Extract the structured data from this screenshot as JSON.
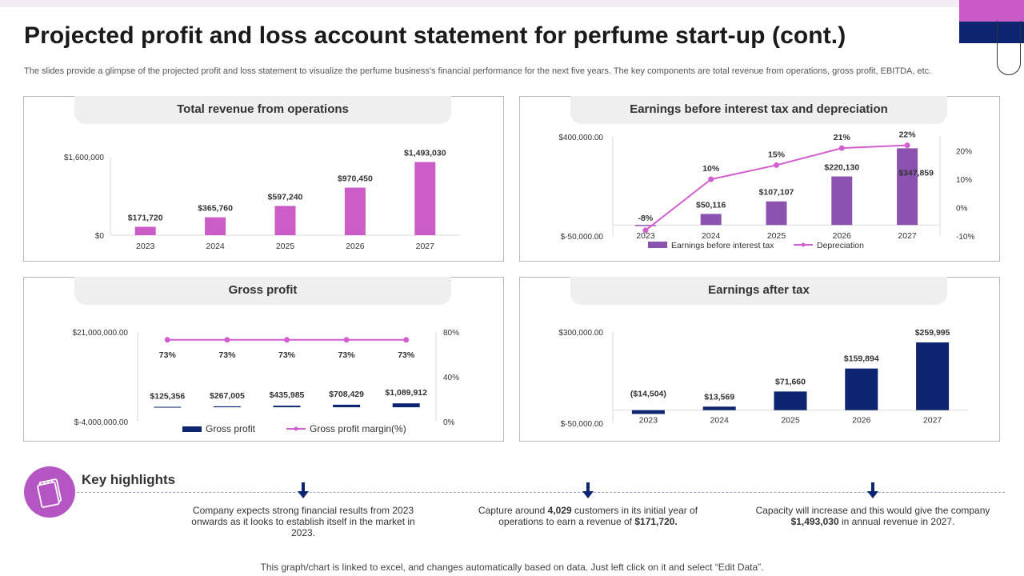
{
  "title": "Projected profit and loss account statement for perfume start-up (cont.)",
  "subtitle": "The slides provide a glimpse of the projected profit and loss statement to visualize the perfume business's financial performance for the next five years. The key components are total revenue from operations, gross profit, EBITDA,  etc.",
  "colors": {
    "pink": "#cc5cc8",
    "navy": "#0d2470",
    "purple": "#8c52b0",
    "line_pink": "#d25ed0"
  },
  "chart_data": [
    {
      "type": "bar",
      "title": "Total revenue from operations",
      "categories": [
        "2023",
        "2024",
        "2025",
        "2026",
        "2027"
      ],
      "values": [
        171720,
        365760,
        597240,
        970450,
        1493030
      ],
      "data_labels": [
        "$171,720",
        "$365,760",
        "$597,240",
        "$970,450",
        "$1,493,030"
      ],
      "ylim": [
        0,
        1600000
      ],
      "yticks": [
        "$0",
        "$1,600,000"
      ],
      "color": "#cc5cc8"
    },
    {
      "type": "bar",
      "title": "Earnings before interest tax and depreciation",
      "categories": [
        "2023",
        "2024",
        "2025",
        "2026",
        "2027"
      ],
      "series": [
        {
          "name": "Earnings before interest tax",
          "type": "bar",
          "values": [
            -5000,
            50116,
            107107,
            220130,
            347859
          ],
          "labels": [
            "",
            "$50,116",
            "$107,107",
            "$220,130",
            "$347,859"
          ]
        },
        {
          "name": "Depreciation",
          "type": "line",
          "values": [
            -8,
            10,
            15,
            21,
            22
          ],
          "labels": [
            "-8%",
            "10%",
            "15%",
            "21%",
            "22%"
          ]
        }
      ],
      "ylim": [
        -50000,
        400000
      ],
      "yticks": [
        "$-50,000.00",
        "$400,000.00"
      ],
      "y2lim": [
        -10,
        25
      ],
      "y2ticks": [
        "-10%",
        "0%",
        "10%",
        "20%"
      ],
      "legend": "bottom"
    },
    {
      "type": "bar",
      "title": "Gross profit",
      "categories": [
        "2023",
        "2024",
        "2025",
        "2026",
        "2027"
      ],
      "series": [
        {
          "name": "Gross profit",
          "type": "bar",
          "values": [
            125356,
            267005,
            435985,
            708429,
            1089912
          ],
          "labels": [
            "$125,356",
            "$267,005",
            "$435,985",
            "$708,429",
            "$1,089,912"
          ]
        },
        {
          "name": "Gross profit margin(%)",
          "type": "line",
          "values": [
            73,
            73,
            73,
            73,
            73
          ],
          "labels": [
            "73%",
            "73%",
            "73%",
            "73%",
            "73%"
          ]
        }
      ],
      "ylim": [
        -4000000,
        21000000
      ],
      "yticks": [
        "$-4,000,000.00",
        "$21,000,000.00"
      ],
      "y2lim": [
        0,
        80
      ],
      "y2ticks": [
        "0%",
        "40%",
        "80%"
      ],
      "legend": "bottom"
    },
    {
      "type": "bar",
      "title": "Earnings after tax",
      "categories": [
        "2023",
        "2024",
        "2025",
        "2026",
        "2027"
      ],
      "values": [
        -14504,
        13569,
        71660,
        159894,
        259995
      ],
      "data_labels": [
        "($14,504)",
        "$13,569",
        "$71,660",
        "$159,894",
        "$259,995"
      ],
      "ylim": [
        -50000,
        300000
      ],
      "yticks": [
        "$-50,000.00",
        "$300,000.00"
      ],
      "color": "#0d2470"
    }
  ],
  "highlights": {
    "title": "Key highlights",
    "items": [
      {
        "pre": "Company expects strong financial results from 2023 onwards as it looks to establish itself in the market in 2023.",
        "bold": "",
        "mid": "",
        "bold2": "",
        "post": ""
      },
      {
        "pre": "Capture around ",
        "bold": "4,029",
        "mid": " customers in its initial year of operations to earn a revenue of ",
        "bold2": "$171,720.",
        "post": ""
      },
      {
        "pre": "Capacity will increase and this would give the company ",
        "bold": "$1,493,030",
        "mid": " in annual revenue in 2027.",
        "bold2": "",
        "post": ""
      }
    ]
  },
  "footer": "This graph/chart is linked to excel,  and changes automatically based on data. Just left click on it and select “Edit Data”."
}
